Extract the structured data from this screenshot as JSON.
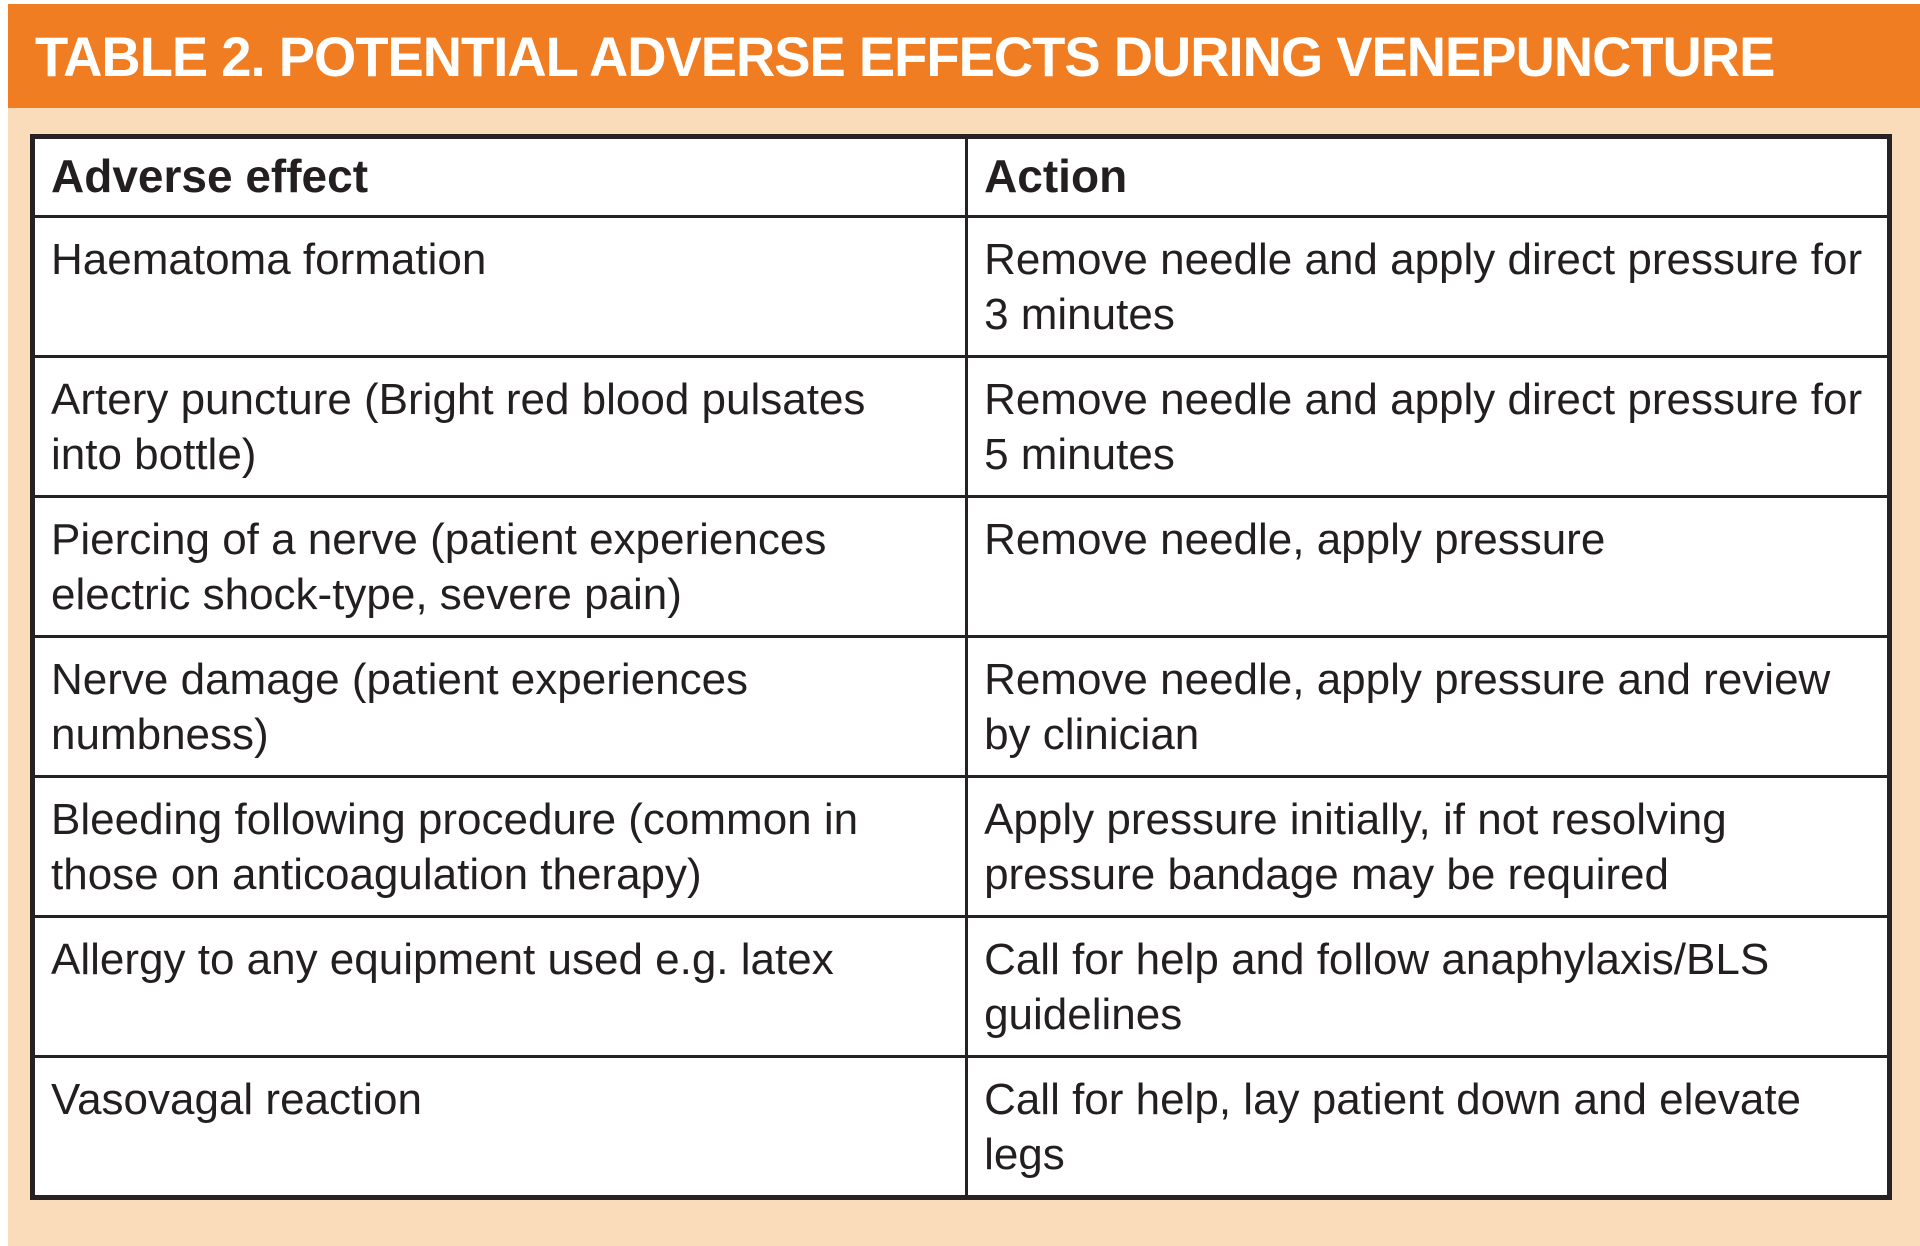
{
  "title": "TABLE 2. POTENTIAL ADVERSE EFFECTS DURING VENEPUNCTURE",
  "table": {
    "headers": {
      "effect": "Adverse effect",
      "action": "Action"
    },
    "rows": [
      {
        "effect": "Haematoma formation",
        "action": "Remove needle and apply direct pressure for 3 minutes"
      },
      {
        "effect": "Artery puncture (Bright red blood pulsates into bottle)",
        "action": "Remove needle and apply direct pressure for 5 minutes"
      },
      {
        "effect": "Piercing of a nerve (patient experiences electric shock-type, severe pain)",
        "action": "Remove needle, apply pressure"
      },
      {
        "effect": "Nerve damage (patient experiences numbness)",
        "action": "Remove needle, apply pressure and review by clinician"
      },
      {
        "effect": "Bleeding following procedure (common in those on anticoagulation therapy)",
        "action": "Apply pressure initially, if not resolving pressure bandage may be required"
      },
      {
        "effect": "Allergy to any equipment used e.g. latex",
        "action": "Call for help and follow anaphylaxis/BLS guidelines"
      },
      {
        "effect": "Vasovagal reaction",
        "action": "Call for help, lay patient down and elevate legs"
      }
    ]
  },
  "colors": {
    "header_bar_bg": "#F07D22",
    "panel_bg": "#FBDCBA",
    "table_border": "#262122",
    "text": "#231F20",
    "cell_bg": "#FFFFFF",
    "title_text": "#FFFFFF"
  }
}
